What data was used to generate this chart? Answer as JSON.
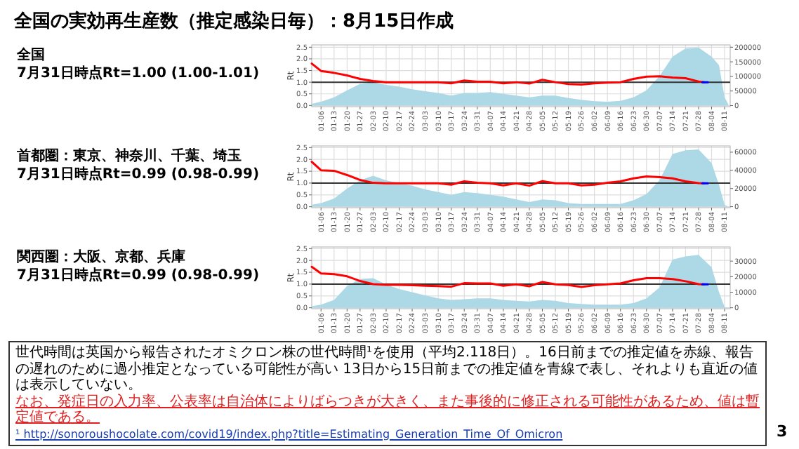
{
  "chart_data": [
    {
      "type": "line",
      "title": "全国の実効再生産数（推定感染日毎）：8月15日作成",
      "subtitle": "全国\n7月31日時点Rt=1.00 (1.00-1.01)",
      "ylabel": "Rt",
      "grid": true,
      "xlim": [
        "--01-01",
        "--08-14"
      ],
      "xticks": [
        {
          "value": "--01-06",
          "label": "01-06"
        },
        {
          "value": "--01-13",
          "label": "01-13"
        },
        {
          "value": "--01-20",
          "label": "01-20"
        },
        {
          "value": "--01-27",
          "label": "01-27"
        },
        {
          "value": "--02-03",
          "label": "02-03"
        },
        {
          "value": "--02-10",
          "label": "02-10"
        },
        {
          "value": "--02-17",
          "label": "02-17"
        },
        {
          "value": "--02-24",
          "label": "02-24"
        },
        {
          "value": "--03-03",
          "label": "03-03"
        },
        {
          "value": "--03-10",
          "label": "03-10"
        },
        {
          "value": "--03-17",
          "label": "03-17"
        },
        {
          "value": "--03-24",
          "label": "03-24"
        },
        {
          "value": "--03-31",
          "label": "03-31"
        },
        {
          "value": "--04-07",
          "label": "04-07"
        },
        {
          "value": "--04-14",
          "label": "04-14"
        },
        {
          "value": "--04-21",
          "label": "04-21"
        },
        {
          "value": "--04-28",
          "label": "04-28"
        },
        {
          "value": "--05-05",
          "label": "05-05"
        },
        {
          "value": "--05-12",
          "label": "05-12"
        },
        {
          "value": "--05-19",
          "label": "05-19"
        },
        {
          "value": "--05-26",
          "label": "05-26"
        },
        {
          "value": "--06-02",
          "label": "06-02"
        },
        {
          "value": "--06-09",
          "label": "06-09"
        },
        {
          "value": "--06-16",
          "label": "06-16"
        },
        {
          "value": "--06-23",
          "label": "06-23"
        },
        {
          "value": "--06-30",
          "label": "06-30"
        },
        {
          "value": "--07-07",
          "label": "07-07"
        },
        {
          "value": "--07-14",
          "label": "07-14"
        },
        {
          "value": "--07-21",
          "label": "07-21"
        },
        {
          "value": "--07-28",
          "label": "07-28"
        },
        {
          "value": "--08-04",
          "label": "08-04"
        },
        {
          "value": "--08-11",
          "label": "08-11"
        }
      ],
      "ylim": [
        -0.05,
        2.6
      ],
      "yticks": [
        {
          "value": 0,
          "label": "0.0"
        },
        0.5,
        {
          "value": 1,
          "label": "1.0"
        },
        1.5,
        {
          "value": 2,
          "label": "2.0"
        },
        2.5
      ],
      "y2lim": [
        -3700,
        208000
      ],
      "y2ticks": [
        0,
        50000,
        100000,
        150000,
        200000
      ],
      "ref_lines": [
        {
          "axis": "y",
          "value": 1,
          "color": "#333333"
        }
      ],
      "series": [
        {
          "type": "area",
          "axis": "y2",
          "color": "#add8e6",
          "x": [
            "--01-01",
            "--01-06",
            "--01-13",
            "--01-20",
            "--01-27",
            "--02-03",
            "--02-10",
            "--02-17",
            "--02-24",
            "--03-03",
            "--03-10",
            "--03-17",
            "--03-24",
            "--03-31",
            "--04-07",
            "--04-14",
            "--04-21",
            "--04-28",
            "--05-05",
            "--05-12",
            "--05-19",
            "--05-26",
            "--06-02",
            "--06-09",
            "--06-16",
            "--06-23",
            "--06-30",
            "--07-07",
            "--07-14",
            "--07-21",
            "--07-28",
            "--08-04",
            "--08-08",
            "--08-11",
            "--08-13"
          ],
          "values": [
            6000,
            13000,
            28000,
            52000,
            74000,
            80000,
            71000,
            65000,
            56000,
            49000,
            43000,
            34000,
            43000,
            43000,
            46000,
            40000,
            34000,
            28000,
            34000,
            34000,
            26000,
            20000,
            15000,
            13000,
            16000,
            28000,
            52000,
            101000,
            168000,
            196000,
            199000,
            168000,
            138000,
            28000,
            4000
          ]
        },
        {
          "type": "line",
          "color": "#ff0000",
          "x": [
            "--01-01",
            "--01-06",
            "--01-13",
            "--01-20",
            "--01-27",
            "--02-03",
            "--02-10",
            "--02-17",
            "--02-24",
            "--03-03",
            "--03-10",
            "--03-17",
            "--03-24",
            "--03-31",
            "--04-07",
            "--04-14",
            "--04-21",
            "--04-28",
            "--05-05",
            "--05-12",
            "--05-19",
            "--05-26",
            "--06-02",
            "--06-09",
            "--06-16",
            "--06-23",
            "--06-30",
            "--07-07",
            "--07-14",
            "--07-21",
            "--07-28",
            "--07-31"
          ],
          "values": [
            1.8,
            1.48,
            1.4,
            1.29,
            1.14,
            1.05,
            1.0,
            1.0,
            1.0,
            1.0,
            1.0,
            0.95,
            1.07,
            1.02,
            1.02,
            0.95,
            1.0,
            0.94,
            1.1,
            1.0,
            0.92,
            0.9,
            0.95,
            0.98,
            1.0,
            1.14,
            1.24,
            1.25,
            1.2,
            1.17,
            1.03,
            1.0
          ]
        },
        {
          "type": "line",
          "color": "#0000ff",
          "x": [
            "--07-30",
            "--07-31",
            "--08-01",
            "--08-02"
          ],
          "values": [
            1.0,
            1.0,
            1.0,
            1.0
          ]
        }
      ]
    },
    {
      "type": "line",
      "subtitle": "首都圏：東京、神奈川、千葉、埼玉\n7月31日時点Rt=0.99 (0.98-0.99)",
      "ylabel": "Rt",
      "grid": true,
      "xlim": [
        "--01-01",
        "--08-14"
      ],
      "xticks": [
        {
          "value": "--01-06",
          "label": "01-06"
        },
        {
          "value": "--01-13",
          "label": "01-13"
        },
        {
          "value": "--01-20",
          "label": "01-20"
        },
        {
          "value": "--01-27",
          "label": "01-27"
        },
        {
          "value": "--02-03",
          "label": "02-03"
        },
        {
          "value": "--02-10",
          "label": "02-10"
        },
        {
          "value": "--02-17",
          "label": "02-17"
        },
        {
          "value": "--02-24",
          "label": "02-24"
        },
        {
          "value": "--03-03",
          "label": "03-03"
        },
        {
          "value": "--03-10",
          "label": "03-10"
        },
        {
          "value": "--03-17",
          "label": "03-17"
        },
        {
          "value": "--03-24",
          "label": "03-24"
        },
        {
          "value": "--03-31",
          "label": "03-31"
        },
        {
          "value": "--04-07",
          "label": "04-07"
        },
        {
          "value": "--04-14",
          "label": "04-14"
        },
        {
          "value": "--04-21",
          "label": "04-21"
        },
        {
          "value": "--04-28",
          "label": "04-28"
        },
        {
          "value": "--05-05",
          "label": "05-05"
        },
        {
          "value": "--05-12",
          "label": "05-12"
        },
        {
          "value": "--05-19",
          "label": "05-19"
        },
        {
          "value": "--05-26",
          "label": "05-26"
        },
        {
          "value": "--06-02",
          "label": "06-02"
        },
        {
          "value": "--06-09",
          "label": "06-09"
        },
        {
          "value": "--06-16",
          "label": "06-16"
        },
        {
          "value": "--06-23",
          "label": "06-23"
        },
        {
          "value": "--06-30",
          "label": "06-30"
        },
        {
          "value": "--07-07",
          "label": "07-07"
        },
        {
          "value": "--07-14",
          "label": "07-14"
        },
        {
          "value": "--07-21",
          "label": "07-21"
        },
        {
          "value": "--07-28",
          "label": "07-28"
        },
        {
          "value": "--08-04",
          "label": "08-04"
        },
        {
          "value": "--08-11",
          "label": "08-11"
        }
      ],
      "ylim": [
        -0.04,
        2.57
      ],
      "yticks": [
        {
          "value": 0,
          "label": "0.0"
        },
        0.5,
        {
          "value": 1,
          "label": "1.0"
        },
        1.5,
        {
          "value": 2,
          "label": "2.0"
        },
        2.5
      ],
      "y2lim": [
        -1100,
        66900
      ],
      "y2ticks": [
        0,
        20000,
        40000,
        60000
      ],
      "ref_lines": [
        {
          "axis": "y",
          "value": 1,
          "color": "#333333"
        }
      ],
      "series": [
        {
          "type": "area",
          "axis": "y2",
          "color": "#add8e6",
          "x": [
            "--01-01",
            "--01-06",
            "--01-13",
            "--01-20",
            "--01-27",
            "--02-03",
            "--02-10",
            "--02-17",
            "--02-24",
            "--03-03",
            "--03-10",
            "--03-17",
            "--03-24",
            "--03-31",
            "--04-07",
            "--04-14",
            "--04-21",
            "--04-28",
            "--05-05",
            "--05-12",
            "--05-19",
            "--05-26",
            "--06-02",
            "--06-09",
            "--06-16",
            "--06-23",
            "--06-30",
            "--07-07",
            "--07-14",
            "--07-21",
            "--07-28",
            "--08-04",
            "--08-08",
            "--08-11",
            "--08-13"
          ],
          "values": [
            2000,
            4000,
            9000,
            20000,
            29000,
            34000,
            29000,
            26000,
            23000,
            19000,
            16000,
            13000,
            16000,
            15000,
            13000,
            11000,
            8000,
            5000,
            8000,
            7000,
            4000,
            3000,
            3000,
            3000,
            3000,
            7000,
            14000,
            29000,
            58000,
            62000,
            63000,
            48000,
            24000,
            2000,
            0
          ]
        },
        {
          "type": "line",
          "color": "#ff0000",
          "x": [
            "--01-01",
            "--01-06",
            "--01-13",
            "--01-20",
            "--01-27",
            "--02-03",
            "--02-10",
            "--02-17",
            "--02-24",
            "--03-03",
            "--03-10",
            "--03-17",
            "--03-24",
            "--03-31",
            "--04-07",
            "--04-14",
            "--04-21",
            "--04-28",
            "--05-05",
            "--05-12",
            "--05-19",
            "--05-26",
            "--06-02",
            "--06-09",
            "--06-16",
            "--06-23",
            "--06-30",
            "--07-07",
            "--07-14",
            "--07-21",
            "--07-28",
            "--07-31"
          ],
          "values": [
            1.9,
            1.54,
            1.52,
            1.34,
            1.13,
            1.01,
            0.99,
            0.99,
            0.99,
            0.99,
            0.99,
            0.93,
            1.07,
            1.01,
            0.99,
            0.9,
            0.99,
            0.89,
            1.08,
            0.99,
            0.99,
            0.9,
            0.93,
            1.01,
            1.07,
            1.2,
            1.28,
            1.25,
            1.2,
            1.07,
            1.0,
            0.99
          ]
        },
        {
          "type": "line",
          "color": "#0000ff",
          "x": [
            "--07-30",
            "--07-31",
            "--08-01",
            "--08-02"
          ],
          "values": [
            0.99,
            0.99,
            0.99,
            0.99
          ]
        }
      ]
    },
    {
      "type": "line",
      "subtitle": "関西圏：大阪、京都、兵庫\n7月31日時点Rt=0.99 (0.98-0.99)",
      "ylabel": "Rt",
      "grid": true,
      "xlim": [
        "--01-01",
        "--08-14"
      ],
      "xticks": [
        {
          "value": "--01-06",
          "label": "01-06"
        },
        {
          "value": "--01-13",
          "label": "01-13"
        },
        {
          "value": "--01-20",
          "label": "01-20"
        },
        {
          "value": "--01-27",
          "label": "01-27"
        },
        {
          "value": "--02-03",
          "label": "02-03"
        },
        {
          "value": "--02-10",
          "label": "02-10"
        },
        {
          "value": "--02-17",
          "label": "02-17"
        },
        {
          "value": "--02-24",
          "label": "02-24"
        },
        {
          "value": "--03-03",
          "label": "03-03"
        },
        {
          "value": "--03-10",
          "label": "03-10"
        },
        {
          "value": "--03-17",
          "label": "03-17"
        },
        {
          "value": "--03-24",
          "label": "03-24"
        },
        {
          "value": "--03-31",
          "label": "03-31"
        },
        {
          "value": "--04-07",
          "label": "04-07"
        },
        {
          "value": "--04-14",
          "label": "04-14"
        },
        {
          "value": "--04-21",
          "label": "04-21"
        },
        {
          "value": "--04-28",
          "label": "04-28"
        },
        {
          "value": "--05-05",
          "label": "05-05"
        },
        {
          "value": "--05-12",
          "label": "05-12"
        },
        {
          "value": "--05-19",
          "label": "05-19"
        },
        {
          "value": "--05-26",
          "label": "05-26"
        },
        {
          "value": "--06-02",
          "label": "06-02"
        },
        {
          "value": "--06-09",
          "label": "06-09"
        },
        {
          "value": "--06-16",
          "label": "06-16"
        },
        {
          "value": "--06-23",
          "label": "06-23"
        },
        {
          "value": "--06-30",
          "label": "06-30"
        },
        {
          "value": "--07-07",
          "label": "07-07"
        },
        {
          "value": "--07-14",
          "label": "07-14"
        },
        {
          "value": "--07-21",
          "label": "07-21"
        },
        {
          "value": "--07-28",
          "label": "07-28"
        },
        {
          "value": "--08-04",
          "label": "08-04"
        },
        {
          "value": "--08-11",
          "label": "08-11"
        }
      ],
      "ylim": [
        -0.04,
        2.57
      ],
      "yticks": [
        {
          "value": 0,
          "label": "0.0"
        },
        0.5,
        {
          "value": 1,
          "label": "1.0"
        },
        1.5,
        {
          "value": 2,
          "label": "2.0"
        },
        2.5
      ],
      "y2lim": [
        -600,
        39100
      ],
      "y2ticks": [
        0,
        10000,
        20000,
        30000
      ],
      "ref_lines": [
        {
          "axis": "y",
          "value": 1,
          "color": "#333333"
        }
      ],
      "series": [
        {
          "type": "area",
          "axis": "y2",
          "color": "#add8e6",
          "x": [
            "--01-01",
            "--01-06",
            "--01-13",
            "--01-20",
            "--01-27",
            "--02-03",
            "--02-10",
            "--02-17",
            "--02-24",
            "--03-03",
            "--03-10",
            "--03-17",
            "--03-24",
            "--03-31",
            "--04-07",
            "--04-14",
            "--04-21",
            "--04-28",
            "--05-05",
            "--05-12",
            "--05-19",
            "--05-26",
            "--06-02",
            "--06-09",
            "--06-16",
            "--06-23",
            "--06-30",
            "--07-07",
            "--07-14",
            "--07-21",
            "--07-28",
            "--08-04",
            "--08-08",
            "--08-11",
            "--08-13"
          ],
          "values": [
            1000,
            2000,
            5000,
            14000,
            18500,
            19000,
            15000,
            12000,
            10000,
            8000,
            6000,
            5000,
            5500,
            6000,
            6000,
            5000,
            4500,
            4000,
            5000,
            4500,
            3000,
            2500,
            2000,
            2000,
            2000,
            3000,
            6000,
            13000,
            31000,
            33000,
            34000,
            26000,
            10000,
            400,
            100
          ]
        },
        {
          "type": "line",
          "color": "#ff0000",
          "x": [
            "--01-01",
            "--01-06",
            "--01-13",
            "--01-20",
            "--01-27",
            "--02-03",
            "--02-10",
            "--02-17",
            "--02-24",
            "--03-03",
            "--03-10",
            "--03-17",
            "--03-24",
            "--03-31",
            "--04-07",
            "--04-14",
            "--04-21",
            "--04-28",
            "--05-05",
            "--05-12",
            "--05-19",
            "--05-26",
            "--06-02",
            "--06-09",
            "--06-16",
            "--06-23",
            "--06-30",
            "--07-07",
            "--07-14",
            "--07-21",
            "--07-28",
            "--07-31"
          ],
          "values": [
            1.73,
            1.45,
            1.42,
            1.33,
            1.13,
            1.0,
            0.97,
            0.97,
            0.95,
            0.93,
            0.92,
            0.89,
            1.04,
            1.03,
            1.03,
            0.93,
            0.99,
            0.91,
            1.09,
            0.99,
            0.96,
            0.88,
            0.95,
            0.99,
            1.03,
            1.16,
            1.25,
            1.25,
            1.21,
            1.12,
            1.0,
            0.99
          ]
        },
        {
          "type": "line",
          "color": "#0000ff",
          "x": [
            "--07-30",
            "--07-31",
            "--08-01",
            "--08-02"
          ],
          "values": [
            0.99,
            0.99,
            0.99,
            0.99
          ]
        }
      ],
      "annotations": [
        "世代時間は英国から報告されたオミクロン株の世代時間¹を使用（平均2.118日）。16日前までの推定値を赤線、報告の遅れのために過小推定となっている可能性が高い 13日から15日前までの推定値を青線で表し、それよりも直近の値は表示していない。",
        "なお、発症日の入力率、公表率は自治体によりばらつきが大きく、また事後的に修正される可能性があるため、値は暫定値である。",
        "¹ http://sonoroushocolate.com/covid19/index.php?title=Estimating_Generation_Time_Of_Omicron",
        "3"
      ]
    }
  ]
}
